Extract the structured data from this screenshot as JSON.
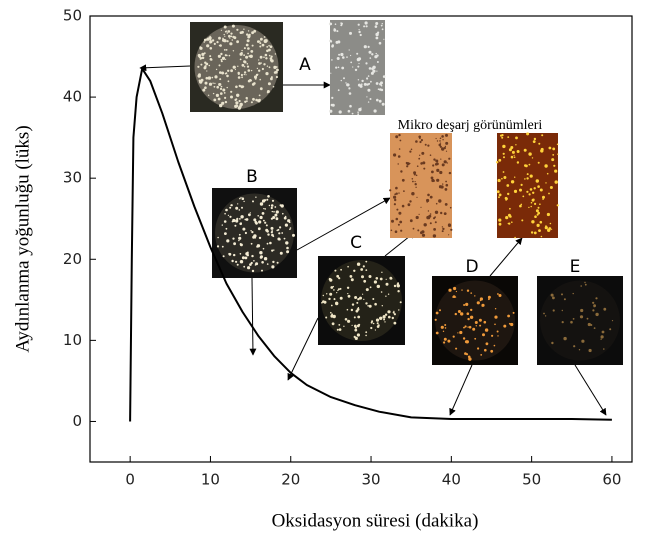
{
  "chart_data": {
    "type": "line",
    "xlabel": "Oksidasyon süresi (dakika)",
    "ylabel": "Aydınlanma yoğunluğu (lüks)",
    "x": [
      0,
      0.2,
      0.4,
      0.8,
      1.5,
      2.5,
      4,
      6,
      8,
      10,
      12,
      14,
      16,
      18,
      20,
      22,
      25,
      28,
      31,
      35,
      40,
      45,
      50,
      55,
      60
    ],
    "series": [
      {
        "color": "#000000",
        "values": [
          0,
          20,
          35,
          40,
          43.5,
          42,
          38,
          32,
          26.5,
          21.5,
          17,
          13.5,
          10.5,
          8,
          6,
          4.5,
          3,
          2,
          1.2,
          0.5,
          0.3,
          0.3,
          0.3,
          0.3,
          0.2
        ]
      }
    ],
    "xlim": [
      -5,
      62.5
    ],
    "ylim": [
      -5,
      50
    ],
    "xticks": [
      0,
      10,
      20,
      30,
      40,
      50,
      60
    ],
    "yticks": [
      0,
      10,
      20,
      30,
      40,
      50
    ],
    "annotations": [
      "A",
      "B",
      "C",
      "D",
      "E",
      "Mikro deşarj görünümleri"
    ]
  }
}
